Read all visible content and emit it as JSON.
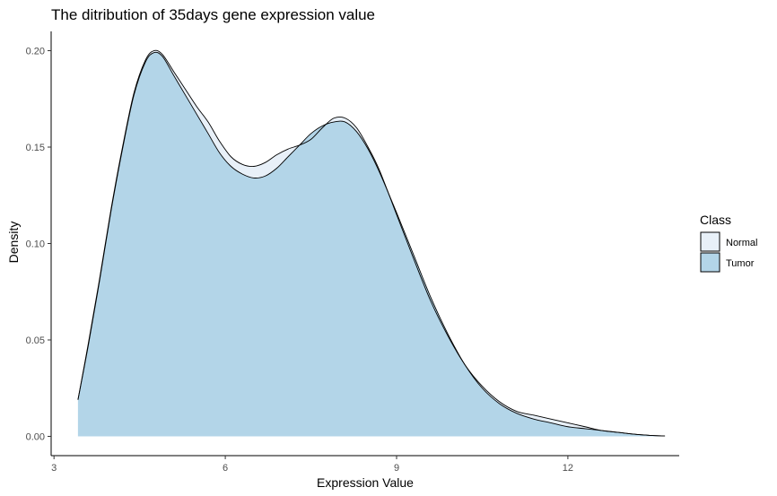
{
  "chart_data": {
    "type": "area",
    "title": "The ditribution of 35days gene expression value",
    "xlabel": "Expression Value",
    "ylabel": "Density",
    "xlim": [
      2.95,
      13.95
    ],
    "ylim": [
      -0.01,
      0.21
    ],
    "x_ticks": [
      3,
      6,
      9,
      12
    ],
    "y_ticks": [
      0.0,
      0.05,
      0.1,
      0.15,
      0.2
    ],
    "x_tick_labels": [
      "3",
      "6",
      "9",
      "12"
    ],
    "y_tick_labels": [
      "0.00",
      "0.05",
      "0.10",
      "0.15",
      "0.20"
    ],
    "grid": false,
    "legend": {
      "title": "Class",
      "position": "right"
    },
    "series": [
      {
        "name": "Normal",
        "color": "#e8f0f8",
        "x": [
          3.42,
          3.6,
          3.8,
          4.0,
          4.2,
          4.4,
          4.6,
          4.75,
          4.9,
          5.1,
          5.3,
          5.5,
          5.7,
          5.9,
          6.1,
          6.3,
          6.5,
          6.7,
          6.9,
          7.1,
          7.3,
          7.5,
          7.7,
          7.9,
          8.1,
          8.3,
          8.5,
          8.7,
          9.0,
          9.3,
          9.6,
          9.9,
          10.2,
          10.5,
          10.8,
          11.1,
          11.4,
          11.7,
          12.0,
          12.3,
          12.6,
          12.9,
          13.2,
          13.45,
          13.7
        ],
        "values": [
          0.019,
          0.048,
          0.082,
          0.118,
          0.15,
          0.178,
          0.195,
          0.2,
          0.198,
          0.189,
          0.18,
          0.171,
          0.163,
          0.153,
          0.145,
          0.141,
          0.14,
          0.142,
          0.146,
          0.149,
          0.151,
          0.154,
          0.16,
          0.165,
          0.165,
          0.16,
          0.15,
          0.138,
          0.115,
          0.092,
          0.07,
          0.052,
          0.037,
          0.026,
          0.018,
          0.013,
          0.011,
          0.009,
          0.007,
          0.005,
          0.003,
          0.002,
          0.001,
          0.0005,
          0.0002
        ]
      },
      {
        "name": "Tumor",
        "color": "#b3d5e8",
        "x": [
          3.42,
          3.6,
          3.8,
          4.0,
          4.2,
          4.4,
          4.6,
          4.75,
          4.9,
          5.1,
          5.3,
          5.5,
          5.7,
          5.9,
          6.1,
          6.3,
          6.5,
          6.7,
          6.9,
          7.1,
          7.3,
          7.5,
          7.7,
          7.9,
          8.1,
          8.3,
          8.5,
          8.7,
          9.0,
          9.3,
          9.6,
          9.9,
          10.2,
          10.5,
          10.8,
          11.1,
          11.4,
          11.7,
          12.0,
          12.3,
          12.6,
          12.9,
          13.2,
          13.45,
          13.7
        ],
        "values": [
          0.019,
          0.047,
          0.081,
          0.117,
          0.149,
          0.177,
          0.194,
          0.199,
          0.197,
          0.187,
          0.177,
          0.167,
          0.157,
          0.147,
          0.14,
          0.136,
          0.134,
          0.135,
          0.139,
          0.145,
          0.151,
          0.157,
          0.161,
          0.163,
          0.163,
          0.158,
          0.149,
          0.137,
          0.116,
          0.094,
          0.072,
          0.053,
          0.037,
          0.025,
          0.017,
          0.012,
          0.009,
          0.007,
          0.005,
          0.004,
          0.003,
          0.002,
          0.001,
          0.0005,
          0.0002
        ]
      }
    ]
  }
}
